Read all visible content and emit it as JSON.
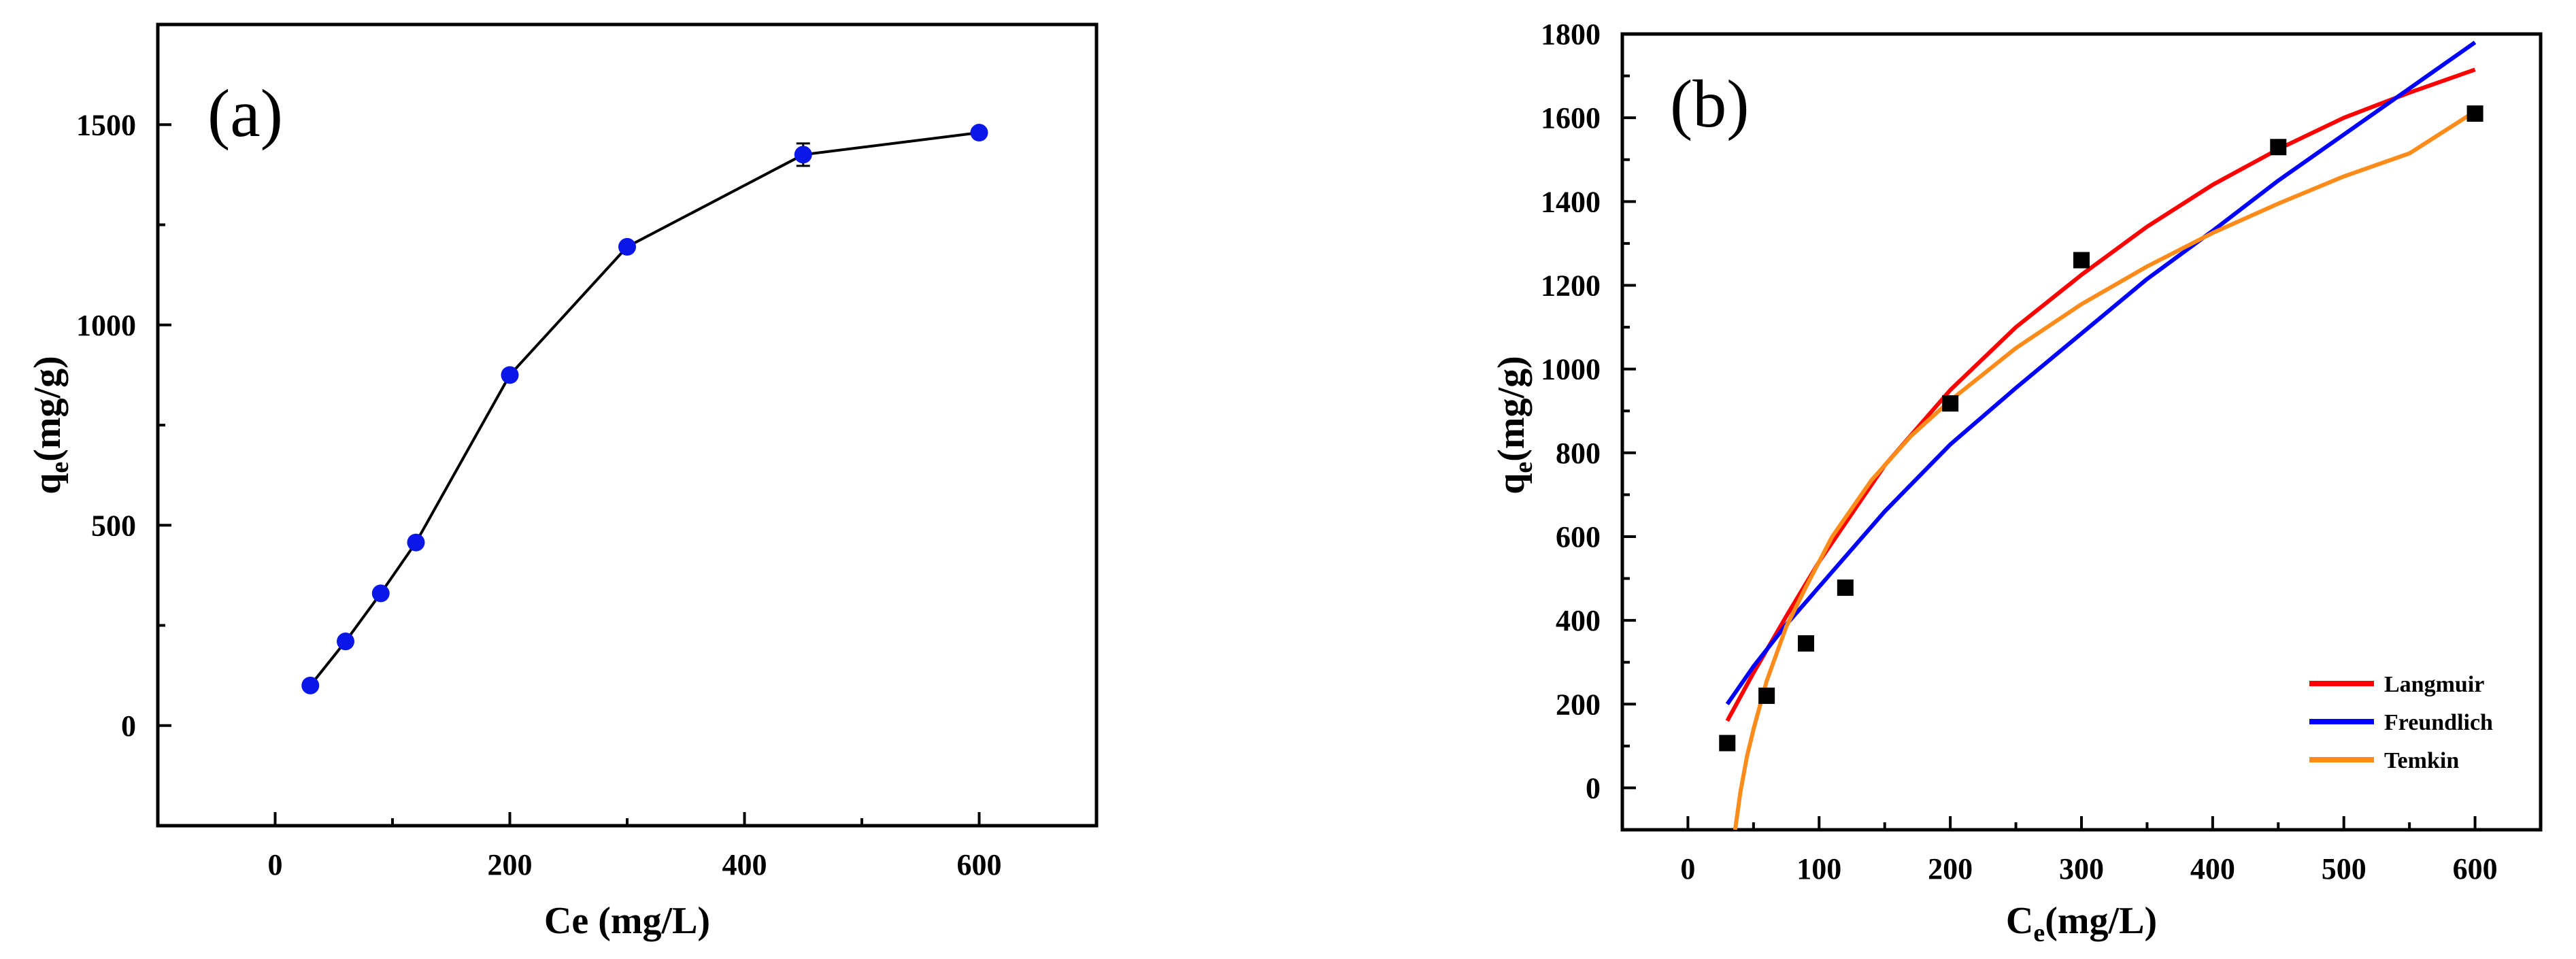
{
  "chart_data": [
    {
      "type": "line",
      "panel_label": "(a)",
      "xlabel": "Ce (mg/L)",
      "ylabel": {
        "main": "q",
        "sub": "e",
        "rest": "(mg/g)"
      },
      "xlim": [
        -100,
        700
      ],
      "ylim": [
        -250,
        1750
      ],
      "xticks": [
        0,
        200,
        400,
        600
      ],
      "yticks": [
        0,
        500,
        1000,
        1500
      ],
      "minor_xticks": [
        -100,
        100,
        300,
        500,
        700
      ],
      "minor_yticks": [
        -250,
        250,
        750,
        1250
      ],
      "series": [
        {
          "color": "#0a17e8",
          "marker": "circle",
          "line_color": "#000000",
          "x": [
            30,
            60,
            90,
            120,
            200,
            300,
            450,
            600
          ],
          "y": [
            100,
            210,
            330,
            457,
            875,
            1195,
            1425,
            1480
          ],
          "error": [
            0,
            0,
            0,
            0,
            0,
            0,
            28,
            0
          ]
        }
      ]
    },
    {
      "type": "scatter",
      "panel_label": "(b)",
      "xlabel": {
        "main": "C",
        "sub": "e",
        "rest": "(mg/L)"
      },
      "ylabel": {
        "main": "q",
        "sub": "e",
        "rest": "(mg/g)"
      },
      "xlim": [
        -50,
        650
      ],
      "ylim": [
        -100,
        1800
      ],
      "xticks": [
        0,
        100,
        200,
        300,
        400,
        500,
        600
      ],
      "yticks": [
        0,
        200,
        400,
        600,
        800,
        1000,
        1200,
        1400,
        1600,
        1800
      ],
      "minor_xticks": [
        -50,
        50,
        150,
        250,
        350,
        450,
        550,
        650
      ],
      "minor_yticks": [
        100,
        300,
        500,
        700,
        900,
        1100,
        1300,
        1500,
        1700
      ],
      "points": {
        "color": "#000000",
        "marker": "square",
        "x": [
          30,
          60,
          90,
          120,
          200,
          300,
          450,
          600
        ],
        "y": [
          107,
          220,
          345,
          478,
          918,
          1260,
          1530,
          1610
        ]
      },
      "legend_position": "bottom-right",
      "series": [
        {
          "name": "Langmuir",
          "color": "#ff0000",
          "x": [
            30,
            50,
            75,
            100,
            150,
            200,
            250,
            300,
            350,
            400,
            450,
            500,
            550,
            600
          ],
          "y": [
            160,
            275,
            410,
            540,
            770,
            950,
            1100,
            1225,
            1340,
            1440,
            1525,
            1600,
            1660,
            1715
          ]
        },
        {
          "name": "Freundlich",
          "color": "#0000ff",
          "x": [
            30,
            50,
            75,
            100,
            150,
            200,
            250,
            300,
            350,
            400,
            450,
            500,
            550,
            600
          ],
          "y": [
            200,
            290,
            390,
            480,
            660,
            820,
            955,
            1085,
            1215,
            1330,
            1450,
            1560,
            1670,
            1780
          ]
        },
        {
          "name": "Temkin",
          "color": "#ff8c1a",
          "x": [
            36,
            40,
            45,
            50,
            60,
            75,
            90,
            110,
            140,
            170,
            200,
            250,
            300,
            350,
            400,
            450,
            500,
            550,
            600
          ],
          "y": [
            -100,
            -10,
            75,
            140,
            255,
            385,
            480,
            600,
            735,
            840,
            925,
            1050,
            1155,
            1245,
            1325,
            1395,
            1460,
            1515,
            1615
          ]
        }
      ]
    }
  ]
}
